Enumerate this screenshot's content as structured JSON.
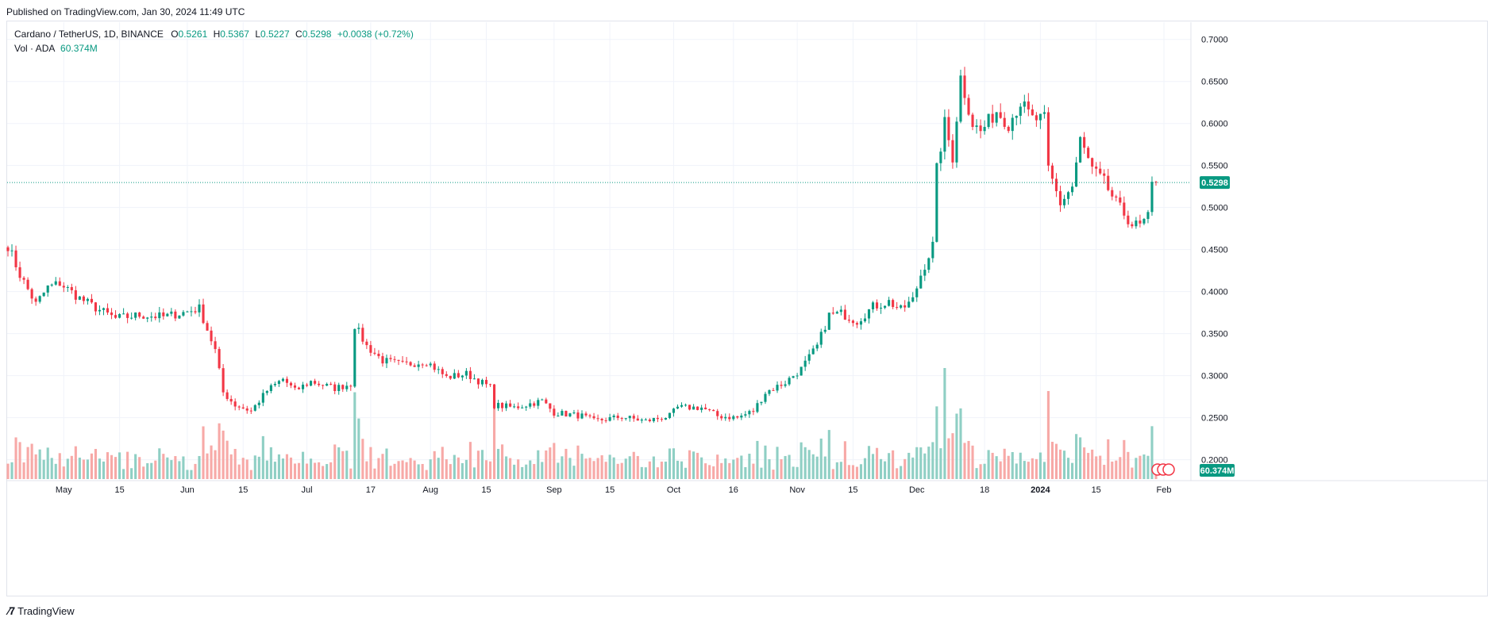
{
  "published": "Published on TradingView.com, Jan 30, 2024 11:49 UTC",
  "legend": {
    "symbol": "Cardano / TetherUS, 1D, BINANCE",
    "open_label": "O",
    "open": "0.5261",
    "high_label": "H",
    "high": "0.5367",
    "low_label": "L",
    "low": "0.5227",
    "close_label": "C",
    "close": "0.5298",
    "change": "+0.0038 (+0.72%)",
    "vol_label": "Vol · ADA",
    "vol_value": "60.374M"
  },
  "footer": {
    "brand": "TradingView"
  },
  "colors": {
    "up": "#089981",
    "down": "#f23645",
    "up_vol": "#8fcfc4",
    "down_vol": "#f7a9a7",
    "grid": "#f0f3fa",
    "axis_text": "#131722"
  },
  "chart_data": {
    "type": "candlestick",
    "y_axis_ticks": [
      "0.7000",
      "0.6500",
      "0.6000",
      "0.5500",
      "0.5000",
      "0.4500",
      "0.4000",
      "0.3500",
      "0.3000",
      "0.2500",
      "0.2000"
    ],
    "ylim": [
      0.176,
      0.7205
    ],
    "x_tick_labels": [
      "May",
      "15",
      "Jun",
      "15",
      "Jul",
      "17",
      "Aug",
      "15",
      "Sep",
      "15",
      "Oct",
      "16",
      "Nov",
      "15",
      "Dec",
      "18",
      "2024",
      "15",
      "Feb"
    ],
    "last_price_label": "0.5298",
    "volume_label": "60.374M",
    "anchors": [
      [
        "2023-04-17",
        0.455
      ],
      [
        "2023-04-20",
        0.42
      ],
      [
        "2023-04-24",
        0.385
      ],
      [
        "2023-04-27",
        0.405
      ],
      [
        "2023-04-30",
        0.41
      ],
      [
        "2023-05-05",
        0.392
      ],
      [
        "2023-05-10",
        0.378
      ],
      [
        "2023-05-14",
        0.368
      ],
      [
        "2023-05-20",
        0.372
      ],
      [
        "2023-05-26",
        0.37
      ],
      [
        "2023-05-31",
        0.375
      ],
      [
        "2023-06-04",
        0.38
      ],
      [
        "2023-06-06",
        0.355
      ],
      [
        "2023-06-08",
        0.33
      ],
      [
        "2023-06-10",
        0.28
      ],
      [
        "2023-06-13",
        0.265
      ],
      [
        "2023-06-17",
        0.258
      ],
      [
        "2023-06-21",
        0.282
      ],
      [
        "2023-06-25",
        0.296
      ],
      [
        "2023-06-28",
        0.282
      ],
      [
        "2023-07-02",
        0.293
      ],
      [
        "2023-07-08",
        0.285
      ],
      [
        "2023-07-12",
        0.29
      ],
      [
        "2023-07-13",
        0.36
      ],
      [
        "2023-07-16",
        0.335
      ],
      [
        "2023-07-20",
        0.318
      ],
      [
        "2023-07-25",
        0.313
      ],
      [
        "2023-07-31",
        0.317
      ],
      [
        "2023-08-05",
        0.298
      ],
      [
        "2023-08-10",
        0.302
      ],
      [
        "2023-08-16",
        0.286
      ],
      [
        "2023-08-17",
        0.265
      ],
      [
        "2023-08-22",
        0.262
      ],
      [
        "2023-08-29",
        0.27
      ],
      [
        "2023-09-01",
        0.256
      ],
      [
        "2023-09-08",
        0.252
      ],
      [
        "2023-09-11",
        0.246
      ],
      [
        "2023-09-18",
        0.251
      ],
      [
        "2023-09-24",
        0.246
      ],
      [
        "2023-09-30",
        0.252
      ],
      [
        "2023-10-02",
        0.262
      ],
      [
        "2023-10-08",
        0.262
      ],
      [
        "2023-10-12",
        0.252
      ],
      [
        "2023-10-17",
        0.25
      ],
      [
        "2023-10-21",
        0.258
      ],
      [
        "2023-10-24",
        0.28
      ],
      [
        "2023-10-29",
        0.292
      ],
      [
        "2023-11-02",
        0.308
      ],
      [
        "2023-11-06",
        0.335
      ],
      [
        "2023-11-09",
        0.372
      ],
      [
        "2023-11-12",
        0.374
      ],
      [
        "2023-11-16",
        0.365
      ],
      [
        "2023-11-20",
        0.382
      ],
      [
        "2023-11-24",
        0.388
      ],
      [
        "2023-11-27",
        0.378
      ],
      [
        "2023-11-30",
        0.39
      ],
      [
        "2023-12-02",
        0.42
      ],
      [
        "2023-12-05",
        0.455
      ],
      [
        "2023-12-06",
        0.545
      ],
      [
        "2023-12-08",
        0.6
      ],
      [
        "2023-12-10",
        0.56
      ],
      [
        "2023-12-12",
        0.655
      ],
      [
        "2023-12-15",
        0.6
      ],
      [
        "2023-12-17",
        0.59
      ],
      [
        "2023-12-21",
        0.615
      ],
      [
        "2023-12-24",
        0.6
      ],
      [
        "2023-12-27",
        0.625
      ],
      [
        "2023-12-30",
        0.605
      ],
      [
        "2024-01-02",
        0.605
      ],
      [
        "2024-01-03",
        0.545
      ],
      [
        "2024-01-06",
        0.505
      ],
      [
        "2024-01-09",
        0.525
      ],
      [
        "2024-01-11",
        0.58
      ],
      [
        "2024-01-14",
        0.545
      ],
      [
        "2024-01-17",
        0.53
      ],
      [
        "2024-01-20",
        0.505
      ],
      [
        "2024-01-24",
        0.48
      ],
      [
        "2024-01-26",
        0.478
      ],
      [
        "2024-01-28",
        0.488
      ],
      [
        "2024-01-29",
        0.526
      ],
      [
        "2024-01-30",
        0.5298
      ]
    ],
    "volume_range": [
      0,
      110
    ],
    "volume_spikes": [
      [
        "2023-06-10",
        48
      ],
      [
        "2023-06-11",
        38
      ],
      [
        "2023-07-13",
        86
      ],
      [
        "2023-07-14",
        60
      ],
      [
        "2023-12-06",
        72
      ],
      [
        "2023-12-08",
        110
      ],
      [
        "2023-12-12",
        70
      ]
    ]
  }
}
